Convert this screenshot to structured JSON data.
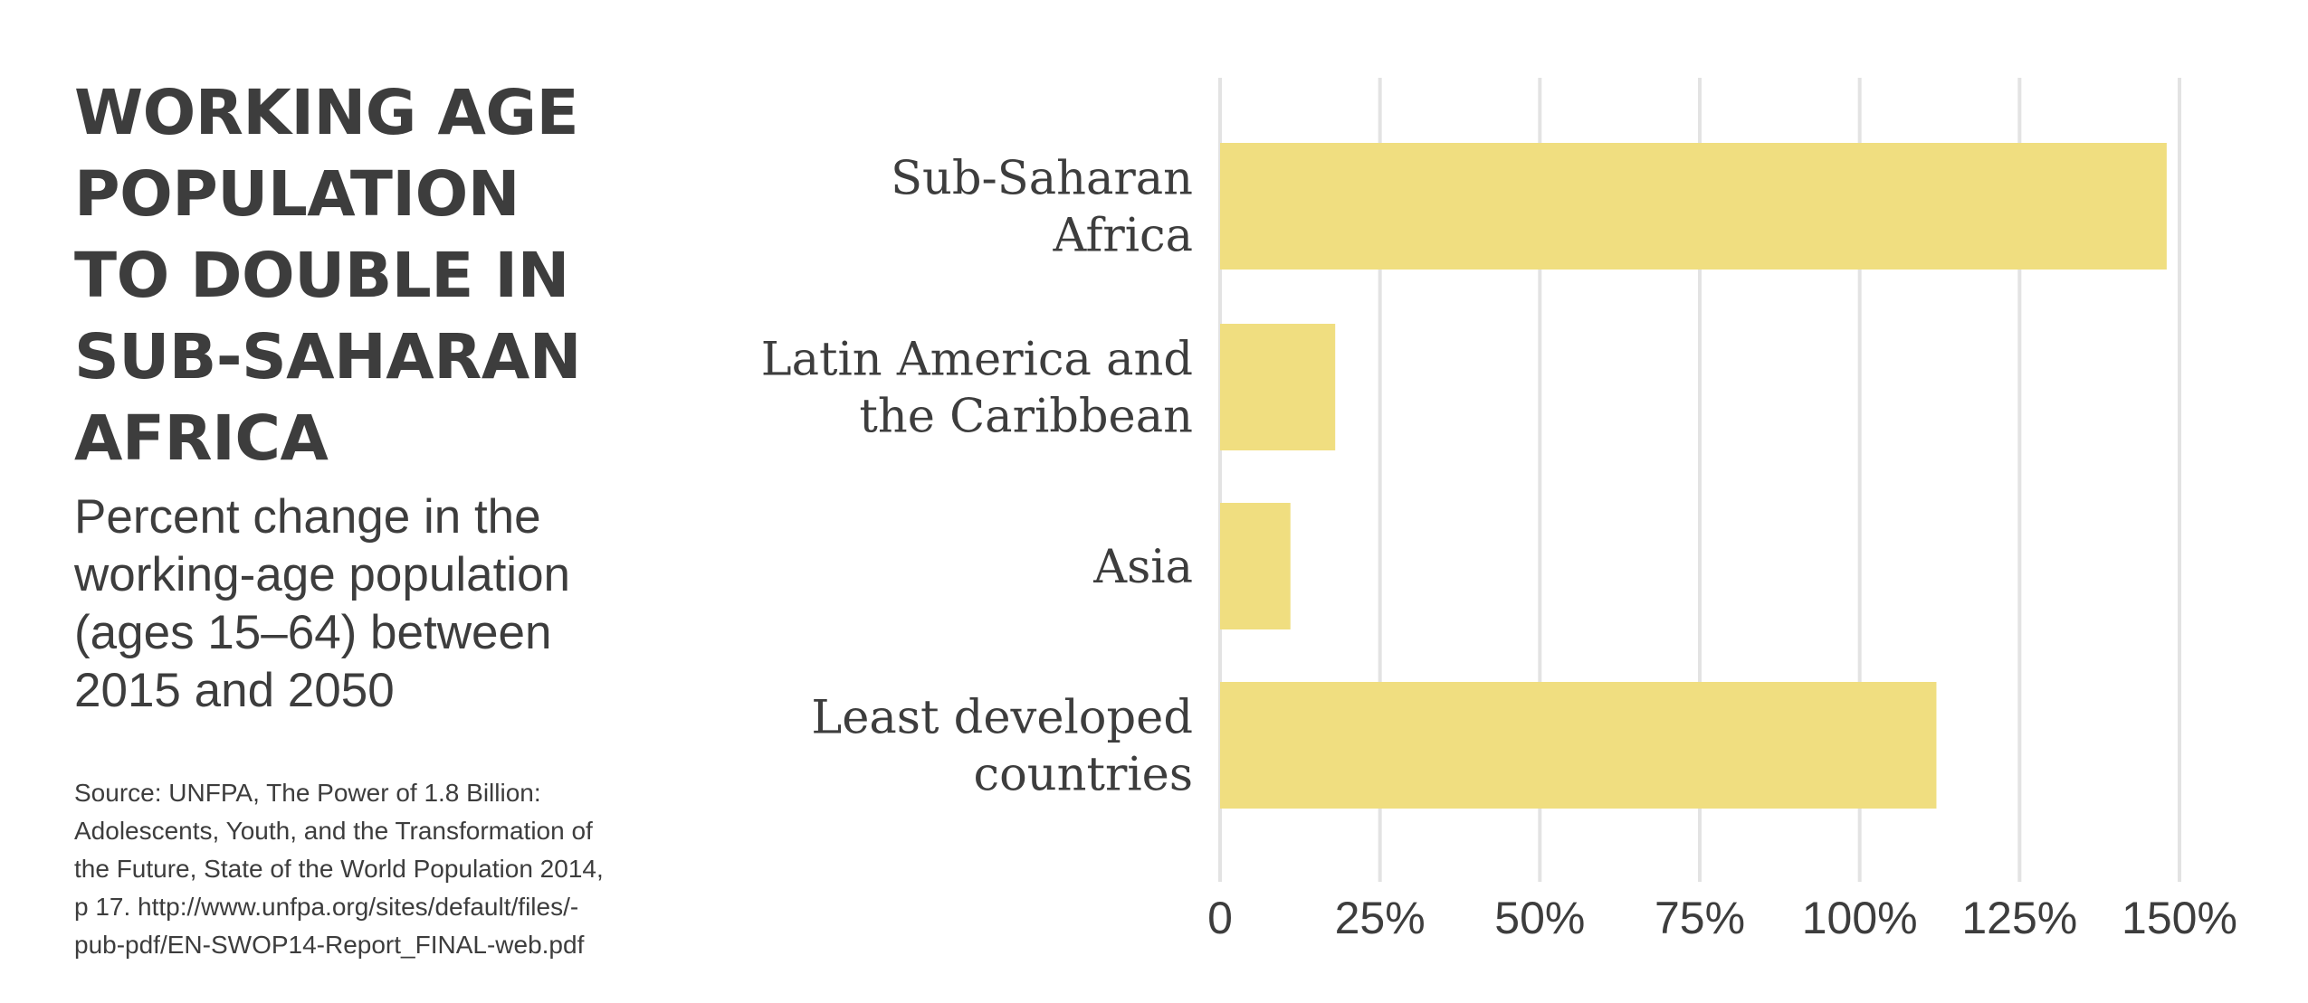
{
  "title": "WORKING AGE\nPOPULATION\nTO DOUBLE IN\nSUB-SAHARAN\nAFRICA",
  "subtitle": "Percent change in the\nworking-age population\n(ages 15–64) between\n2015 and 2050",
  "source": "Source: UNFPA, The Power of 1.8 Billion:\nAdolescents, Youth, and the Transformation of\nthe Future, State of the World Population 2014,\np 17. http://www.unfpa.org/sites/default/files/-\npub-pdf/EN-SWOP14-Report_FINAL-web.pdf",
  "colors": {
    "bar": "#f0de80",
    "grid": "#e3e3e3",
    "text": "#3d3d3d"
  },
  "chart_data": {
    "type": "bar",
    "orientation": "horizontal",
    "categories": [
      [
        "Sub-Saharan",
        "Africa"
      ],
      [
        "Latin America and",
        "the Caribbean"
      ],
      [
        "Asia"
      ],
      [
        "Least developed",
        "countries"
      ]
    ],
    "values": [
      148,
      18,
      11,
      112
    ],
    "xlim": [
      0,
      150
    ],
    "xticks": [
      0,
      25,
      50,
      75,
      100,
      125,
      150
    ],
    "xtick_labels": [
      "0",
      "25%",
      "50%",
      "75%",
      "100%",
      "125%",
      "150%"
    ],
    "grid": true,
    "legend": "none"
  }
}
